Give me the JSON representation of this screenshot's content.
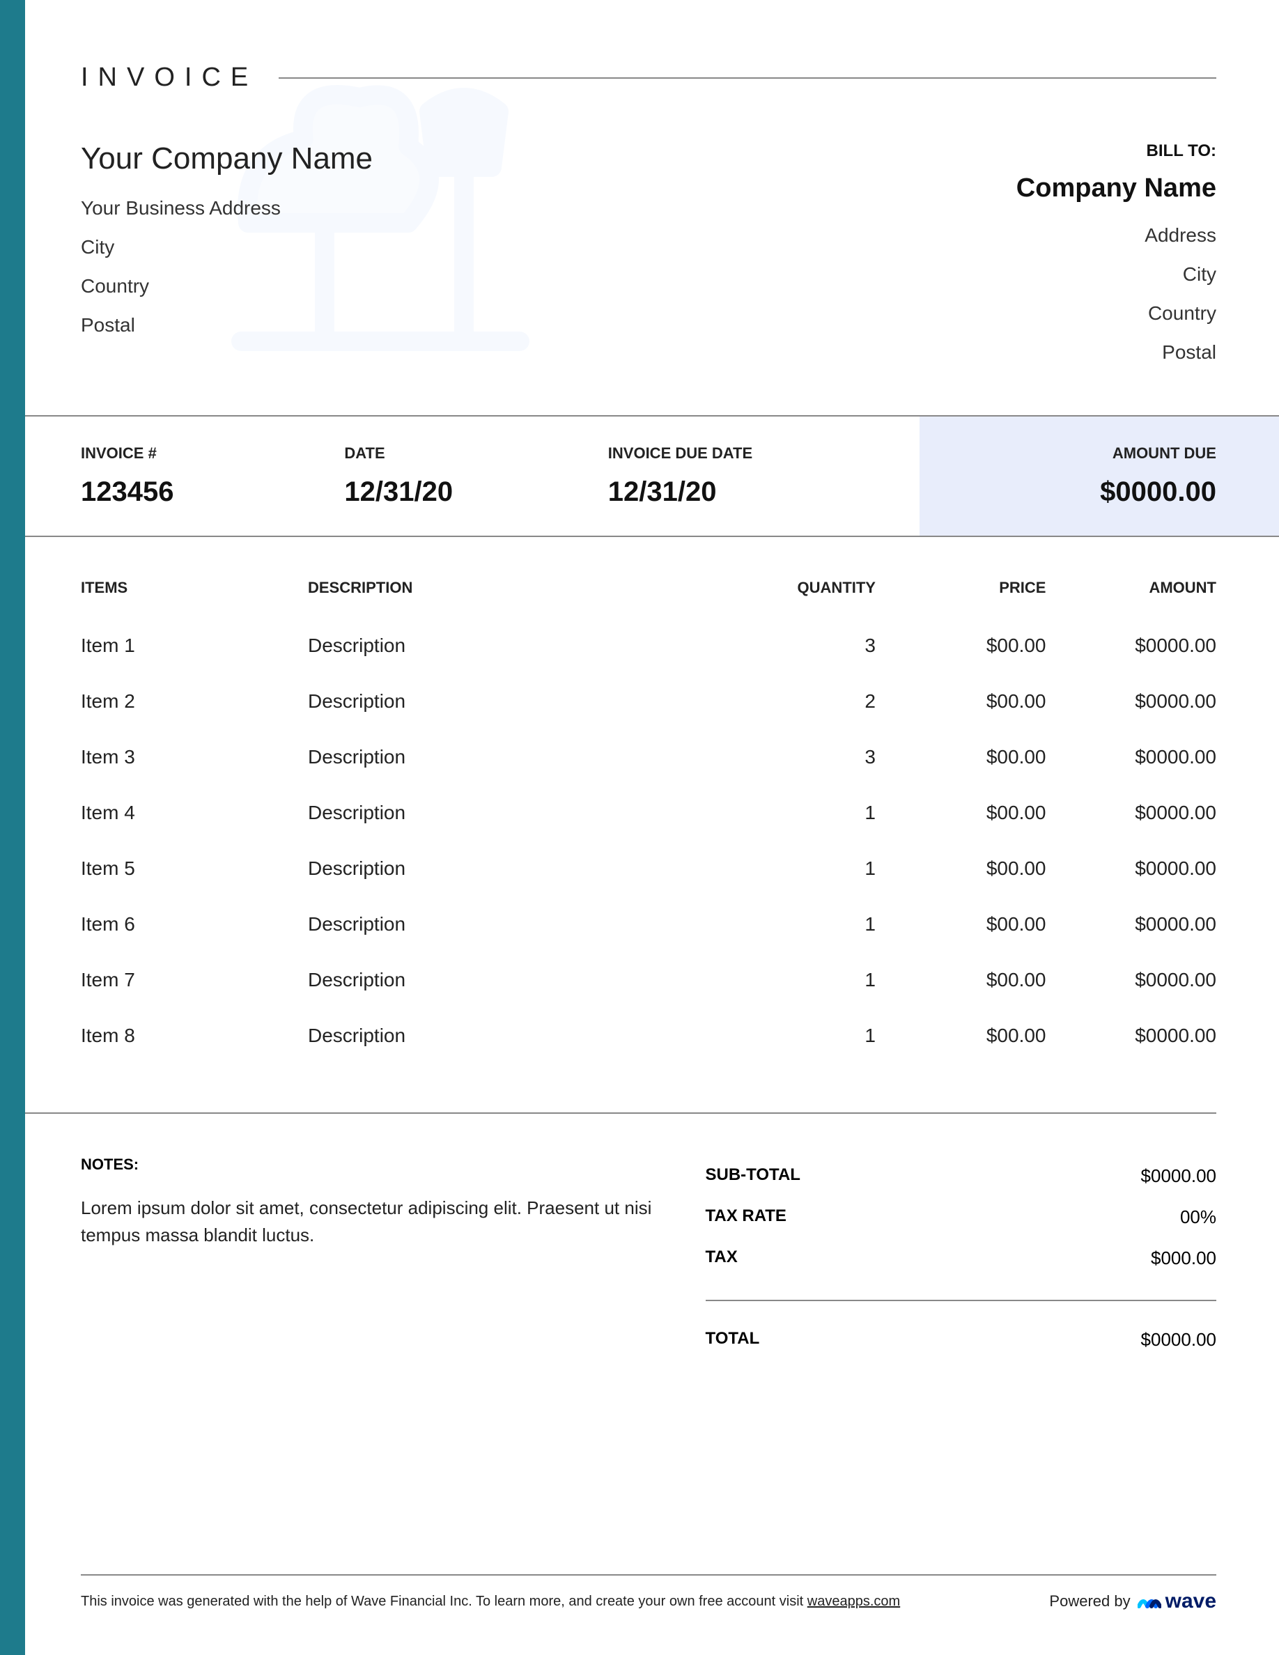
{
  "colors": {
    "side_bar": "#1e7b8c",
    "watermark": "#cfe0fb",
    "amount_due_bg": "#e8edfb",
    "divider": "#888888",
    "text": "#222222",
    "wave_blue": "#0066ff",
    "wave_dark": "#001b66"
  },
  "header": {
    "title": "INVOICE"
  },
  "from": {
    "company": "Your Company Name",
    "address": "Your Business Address",
    "city": "City",
    "country": "Country",
    "postal": "Postal"
  },
  "to": {
    "label": "BILL TO:",
    "company": "Company Name",
    "address": "Address",
    "city": "City",
    "country": "Country",
    "postal": "Postal"
  },
  "meta": {
    "invoice_num_label": "INVOICE #",
    "invoice_num": "123456",
    "date_label": "DATE",
    "date": "12/31/20",
    "due_date_label": "INVOICE DUE DATE",
    "due_date": "12/31/20",
    "amount_due_label": "AMOUNT DUE",
    "amount_due": "$0000.00"
  },
  "columns": {
    "items": "ITEMS",
    "description": "DESCRIPTION",
    "quantity": "QUANTITY",
    "price": "PRICE",
    "amount": "AMOUNT"
  },
  "items": [
    {
      "name": "Item 1",
      "desc": "Description",
      "qty": "3",
      "price": "$00.00",
      "amount": "$0000.00"
    },
    {
      "name": "Item 2",
      "desc": "Description",
      "qty": "2",
      "price": "$00.00",
      "amount": "$0000.00"
    },
    {
      "name": "Item 3",
      "desc": "Description",
      "qty": "3",
      "price": "$00.00",
      "amount": "$0000.00"
    },
    {
      "name": "Item 4",
      "desc": "Description",
      "qty": "1",
      "price": "$00.00",
      "amount": "$0000.00"
    },
    {
      "name": "Item 5",
      "desc": "Description",
      "qty": "1",
      "price": "$00.00",
      "amount": "$0000.00"
    },
    {
      "name": "Item 6",
      "desc": "Description",
      "qty": "1",
      "price": "$00.00",
      "amount": "$0000.00"
    },
    {
      "name": "Item 7",
      "desc": "Description",
      "qty": "1",
      "price": "$00.00",
      "amount": "$0000.00"
    },
    {
      "name": "Item 8",
      "desc": "Description",
      "qty": "1",
      "price": "$00.00",
      "amount": "$0000.00"
    }
  ],
  "notes": {
    "label": "NOTES:",
    "text": "Lorem ipsum dolor sit amet, consectetur adipiscing elit. Praesent ut nisi tempus massa blandit luctus."
  },
  "totals": {
    "subtotal_label": "SUB-TOTAL",
    "subtotal": "$0000.00",
    "tax_rate_label": "TAX RATE",
    "tax_rate": "00%",
    "tax_label": "TAX",
    "tax": "$000.00",
    "total_label": "TOTAL",
    "total": "$0000.00"
  },
  "footer": {
    "text_prefix": "This invoice was generated with the help of Wave Financial Inc. To learn more, and create your own free account visit ",
    "link_text": "waveapps.com",
    "powered_by": "Powered by",
    "brand": "wave"
  }
}
